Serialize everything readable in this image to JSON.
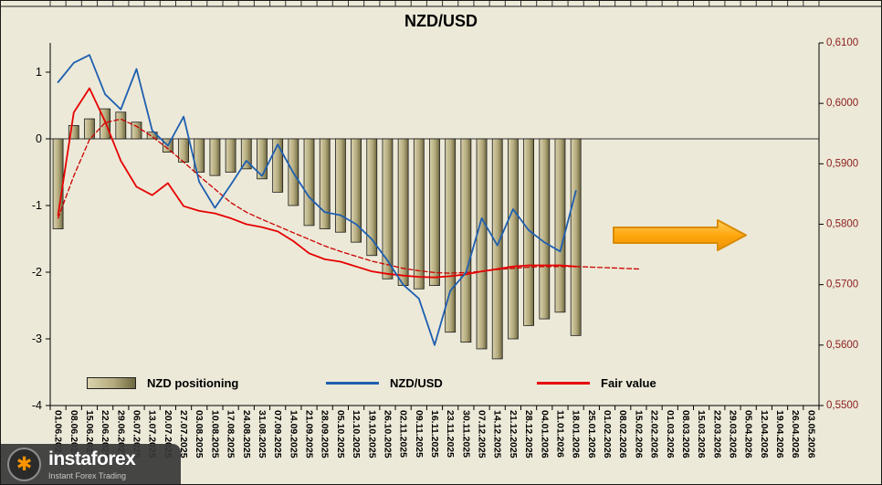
{
  "chart_data": {
    "type": "combo-bar-line",
    "title": "NZD/USD",
    "categories": [
      "01.06.2025",
      "08.06.2025",
      "15.06.2025",
      "22.06.2025",
      "29.06.2025",
      "06.07.2025",
      "13.07.2025",
      "20.07.2025",
      "27.07.2025",
      "03.08.2025",
      "10.08.2025",
      "17.08.2025",
      "24.08.2025",
      "31.08.2025",
      "07.09.2025",
      "14.09.2025",
      "21.09.2025",
      "28.09.2025",
      "05.10.2025",
      "12.10.2025",
      "19.10.2025",
      "26.10.2025",
      "02.11.2025",
      "09.11.2025",
      "16.11.2025",
      "23.11.2025",
      "30.11.2025",
      "07.12.2025",
      "14.12.2025",
      "21.12.2025",
      "28.12.2025",
      "04.01.2026",
      "11.01.2026",
      "18.01.2026",
      "25.01.2026",
      "01.02.2026",
      "08.02.2026",
      "15.02.2026",
      "22.02.2026",
      "01.03.2026",
      "08.03.2026",
      "15.03.2026",
      "22.03.2026",
      "29.03.2026",
      "05.04.2026",
      "12.04.2026",
      "19.04.2026",
      "26.04.2026",
      "03.05.2026"
    ],
    "series": [
      {
        "name": "NZD positioning",
        "type": "bar",
        "axis": "left",
        "color": "#b3aa7d",
        "color_light": "#dad2ad",
        "color_dark": "#6f673f",
        "values": [
          -1.35,
          0.2,
          0.3,
          0.45,
          0.4,
          0.25,
          0.1,
          -0.2,
          -0.35,
          -0.5,
          -0.55,
          -0.5,
          -0.45,
          -0.6,
          -0.8,
          -1.0,
          -1.3,
          -1.35,
          -1.4,
          -1.55,
          -1.75,
          -2.1,
          -2.2,
          -2.25,
          -2.2,
          -2.9,
          -3.05,
          -3.15,
          -3.3,
          -3.0,
          -2.8,
          -2.7,
          -2.6,
          -2.95
        ]
      },
      {
        "name": "NZD/USD",
        "type": "line",
        "axis": "right",
        "color": "#1e5fb0",
        "values": [
          0.6035,
          0.6067,
          0.608,
          0.6015,
          0.599,
          0.6057,
          0.5955,
          0.593,
          0.5978,
          0.587,
          0.5827,
          0.5865,
          0.5905,
          0.588,
          0.5932,
          0.5885,
          0.5845,
          0.582,
          0.5815,
          0.58,
          0.5775,
          0.574,
          0.57,
          0.5677,
          0.56,
          0.569,
          0.572,
          0.581,
          0.5765,
          0.5825,
          0.579,
          0.577,
          0.5755,
          0.5855
        ]
      },
      {
        "name": "Fair value",
        "type": "line",
        "axis": "right",
        "color": "#e60000",
        "values": [
          0.5815,
          0.5985,
          0.6025,
          0.597,
          0.5905,
          0.5862,
          0.5848,
          0.5868,
          0.583,
          0.5822,
          0.5818,
          0.581,
          0.58,
          0.5795,
          0.5788,
          0.5772,
          0.5752,
          0.5742,
          0.5738,
          0.573,
          0.5722,
          0.5718,
          0.5715,
          0.5713,
          0.5712,
          0.5714,
          0.5717,
          0.5722,
          0.5726,
          0.573,
          0.5732,
          0.5732,
          0.5732,
          0.573
        ]
      },
      {
        "name": "fair-value-dashed",
        "type": "line-dashed",
        "axis": "right",
        "color": "#cc0000",
        "values": [
          0.581,
          0.588,
          0.594,
          0.5968,
          0.5974,
          0.5962,
          0.5945,
          0.5925,
          0.5903,
          0.588,
          0.5858,
          0.5836,
          0.582,
          0.5808,
          0.5797,
          0.5786,
          0.5775,
          0.5764,
          0.5755,
          0.5747,
          0.5739,
          0.5733,
          0.5727,
          0.5723,
          0.572,
          0.5719,
          0.572,
          0.5722,
          0.5725,
          0.5727,
          0.5729,
          0.573,
          0.573,
          0.573,
          0.5729,
          0.5728,
          0.5727,
          0.5726
        ]
      }
    ],
    "left_axis": {
      "min": -4,
      "max": 1.44,
      "ticks": [
        "1",
        "0",
        "-1",
        "-2",
        "-3",
        "-4"
      ],
      "color": "#000000"
    },
    "right_axis": {
      "min": 0.55,
      "max": 0.61,
      "ticks": [
        "0,6100",
        "0,6000",
        "0,5900",
        "0,5800",
        "0,5700",
        "0,5600",
        "0,5500"
      ],
      "color": "#8b1c1c"
    },
    "legend_position": "bottom-inside",
    "grid": false,
    "annotations": {
      "forecast_arrow": {
        "shape": "right-arrow",
        "color": "#ffa70f",
        "border_color": "#d98b00"
      }
    }
  },
  "watermark": {
    "brand": "instaforex",
    "tagline": "Instant Forex Trading"
  }
}
